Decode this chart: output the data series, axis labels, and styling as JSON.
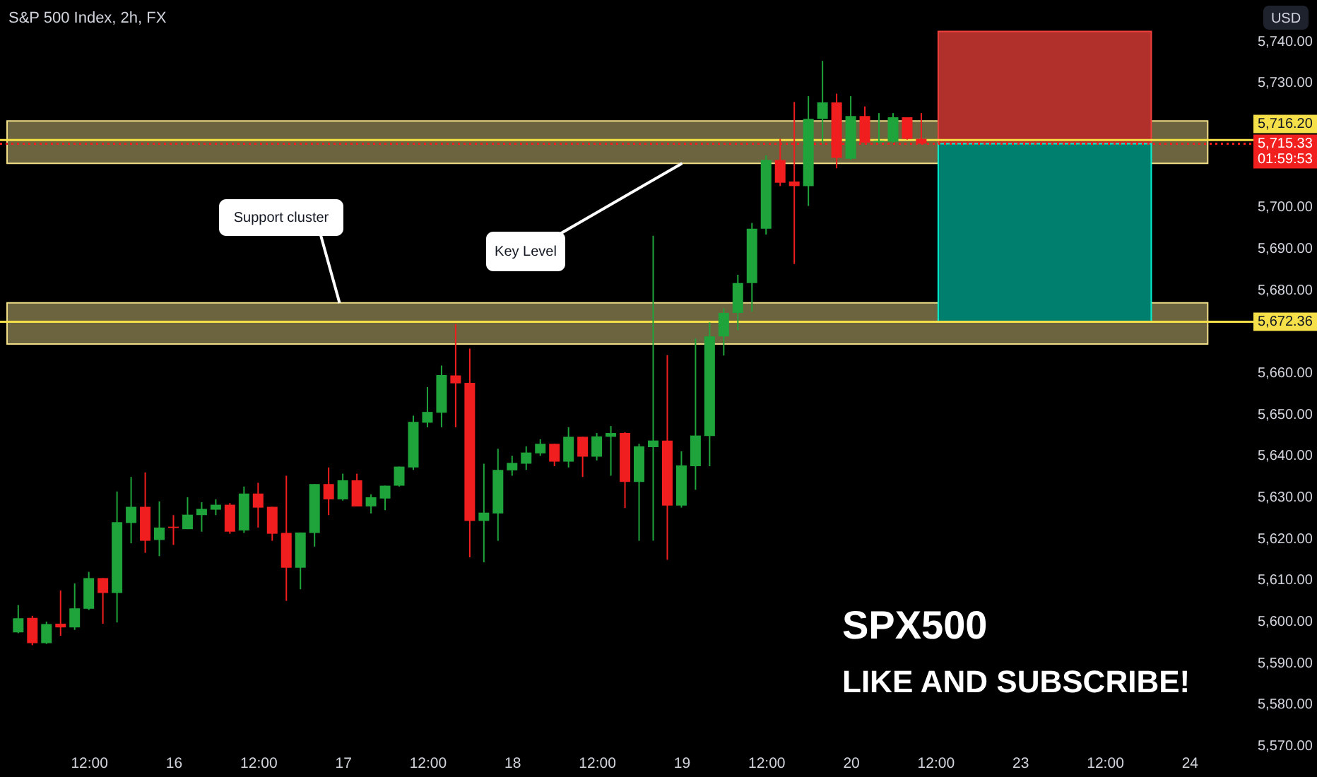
{
  "chart_data": {
    "type": "candlestick",
    "title": "S&P 500 Index, 2h, FX",
    "ylabel": "USD",
    "categories": [
      null,
      null,
      null,
      null,
      null,
      "12:00",
      null,
      null,
      null,
      null,
      null,
      "16",
      null,
      null,
      null,
      null,
      null,
      "12:00",
      null,
      null,
      null,
      null,
      null,
      "17",
      null,
      null,
      null,
      null,
      null,
      "12:00",
      null,
      null,
      null,
      null,
      null,
      "18",
      null,
      null,
      null,
      null,
      null,
      "12:00",
      null,
      null,
      null,
      null,
      null,
      "19",
      null,
      null,
      null,
      null,
      null,
      "12:00",
      null,
      null,
      null,
      null,
      null,
      "20",
      null,
      null,
      null,
      null,
      null,
      "12:00",
      null,
      null,
      null,
      null,
      null,
      "23",
      null,
      null,
      null,
      null,
      null,
      "12:00",
      null,
      null,
      null,
      null,
      null,
      "24",
      null,
      null,
      null
    ],
    "ohlc": [
      [
        5597.4,
        5604.0,
        5597.2,
        5600.8
      ],
      [
        5600.9,
        5601.4,
        5594.3,
        5594.8
      ],
      [
        5594.8,
        5600.0,
        5594.6,
        5599.4
      ],
      [
        5599.5,
        5607.5,
        5596.6,
        5598.6
      ],
      [
        5598.6,
        5609.2,
        5598.0,
        5603.2
      ],
      [
        5603.1,
        5612.0,
        5602.8,
        5610.5
      ],
      [
        5610.5,
        5610.5,
        5599.5,
        5606.9
      ],
      [
        5606.9,
        5631.4,
        5599.8,
        5624.0
      ],
      [
        5623.8,
        5634.9,
        5618.9,
        5627.7
      ],
      [
        5627.7,
        5636.0,
        5616.6,
        5619.5
      ],
      [
        5619.7,
        5629.0,
        5615.8,
        5622.7
      ],
      [
        5622.9,
        5625.7,
        5618.5,
        5622.6
      ],
      [
        5622.3,
        5630.0,
        5622.3,
        5625.8
      ],
      [
        5625.7,
        5628.8,
        5621.7,
        5627.2
      ],
      [
        5627.0,
        5629.5,
        5625.7,
        5628.2
      ],
      [
        5628.2,
        5628.6,
        5621.2,
        5621.7
      ],
      [
        5622.0,
        5632.6,
        5621.4,
        5630.9
      ],
      [
        5630.9,
        5633.5,
        5622.7,
        5627.5
      ],
      [
        5627.7,
        5627.7,
        5619.5,
        5621.2
      ],
      [
        5621.4,
        5635.2,
        5605.0,
        5613.0
      ],
      [
        5613.0,
        5621.5,
        5607.8,
        5621.5
      ],
      [
        5621.4,
        5633.2,
        5618.1,
        5633.2
      ],
      [
        5633.2,
        5637.2,
        5625.7,
        5629.5
      ],
      [
        5629.5,
        5635.7,
        5629.2,
        5634.1
      ],
      [
        5634.1,
        5635.7,
        5627.8,
        5627.8
      ],
      [
        5627.8,
        5630.7,
        5626.1,
        5630.0
      ],
      [
        5629.7,
        5632.8,
        5626.9,
        5632.8
      ],
      [
        5632.8,
        5637.4,
        5632.6,
        5637.4
      ],
      [
        5637.2,
        5649.7,
        5636.6,
        5648.2
      ],
      [
        5648.0,
        5656.6,
        5646.9,
        5650.6
      ],
      [
        5650.4,
        5661.8,
        5646.9,
        5659.5
      ],
      [
        5659.4,
        5671.8,
        5646.9,
        5657.5
      ],
      [
        5657.6,
        5665.9,
        5615.5,
        5624.3
      ],
      [
        5624.3,
        5638.1,
        5614.3,
        5626.3
      ],
      [
        5626.1,
        5641.7,
        5619.5,
        5636.6
      ],
      [
        5636.5,
        5640.0,
        5635.2,
        5638.3
      ],
      [
        5638.1,
        5642.3,
        5636.6,
        5640.8
      ],
      [
        5640.6,
        5644.0,
        5640.0,
        5642.9
      ],
      [
        5642.9,
        5642.9,
        5637.5,
        5638.6
      ],
      [
        5638.6,
        5646.9,
        5637.2,
        5644.6
      ],
      [
        5644.6,
        5644.6,
        5634.9,
        5639.8
      ],
      [
        5639.8,
        5645.5,
        5638.9,
        5644.7
      ],
      [
        5644.6,
        5647.2,
        5635.2,
        5645.5
      ],
      [
        5645.5,
        5645.7,
        5627.4,
        5633.7
      ],
      [
        5633.7,
        5642.9,
        5619.5,
        5642.3
      ],
      [
        5642.1,
        5693.1,
        5619.5,
        5643.7
      ],
      [
        5643.7,
        5664.3,
        5614.9,
        5628.0
      ],
      [
        5628.0,
        5641.1,
        5627.5,
        5637.7
      ],
      [
        5637.5,
        5668.3,
        5631.8,
        5644.9
      ],
      [
        5644.8,
        5672.2,
        5637.5,
        5668.8
      ],
      [
        5668.8,
        5675.6,
        5664.2,
        5674.5
      ],
      [
        5674.5,
        5683.7,
        5670.3,
        5681.7
      ],
      [
        5681.7,
        5696.2,
        5674.8,
        5694.8
      ],
      [
        5694.8,
        5712.5,
        5693.4,
        5711.4
      ],
      [
        5711.4,
        5716.5,
        5705.1,
        5705.9
      ],
      [
        5706.2,
        5725.4,
        5686.3,
        5705.1
      ],
      [
        5705.1,
        5726.8,
        5700.3,
        5721.3
      ],
      [
        5721.3,
        5735.3,
        5715.4,
        5725.3
      ],
      [
        5725.3,
        5727.4,
        5709.4,
        5711.9
      ],
      [
        5711.7,
        5726.8,
        5711.4,
        5722.0
      ],
      [
        5722.0,
        5724.3,
        5715.4,
        5715.6
      ],
      [
        5715.7,
        5722.7,
        5715.5,
        5716.0
      ],
      [
        5715.8,
        5722.7,
        5715.6,
        5721.7
      ],
      [
        5721.7,
        5721.7,
        5716.3,
        5716.5
      ],
      [
        5716.5,
        5722.7,
        5715.3,
        5715.33
      ],
      null,
      null,
      null,
      null,
      null,
      null,
      null,
      null,
      null,
      null,
      null,
      null,
      null,
      null,
      null,
      null,
      null,
      null,
      null,
      null,
      null,
      null
    ],
    "colors": [
      "#1fa33b",
      "#f01e1e",
      "#1fa33b",
      "#f01e1e",
      "#1fa33b",
      "#1fa33b",
      "#f01e1e",
      "#1fa33b",
      "#1fa33b",
      "#f01e1e",
      "#1fa33b",
      "#f01e1e",
      "#1fa33b",
      "#1fa33b",
      "#1fa33b",
      "#f01e1e",
      "#1fa33b",
      "#f01e1e",
      "#f01e1e",
      "#f01e1e",
      "#1fa33b",
      "#1fa33b",
      "#f01e1e",
      "#1fa33b",
      "#f01e1e",
      "#1fa33b",
      "#1fa33b",
      "#1fa33b",
      "#1fa33b",
      "#1fa33b",
      "#1fa33b",
      "#f01e1e",
      "#f01e1e",
      "#1fa33b",
      "#1fa33b",
      "#1fa33b",
      "#1fa33b",
      "#1fa33b",
      "#f01e1e",
      "#1fa33b",
      "#f01e1e",
      "#1fa33b",
      "#1fa33b",
      "#f01e1e",
      "#1fa33b",
      "#1fa33b",
      "#f01e1e",
      "#1fa33b",
      "#1fa33b",
      "#1fa33b",
      "#1fa33b",
      "#1fa33b",
      "#1fa33b",
      "#1fa33b",
      "#f01e1e",
      "#f01e1e",
      "#1fa33b",
      "#1fa33b",
      "#f01e1e",
      "#1fa33b",
      "#f01e1e",
      "#1fa33b",
      "#1fa33b",
      "#f01e1e",
      "#f01e1e",
      null,
      null,
      null,
      null,
      null,
      null,
      null,
      null,
      null,
      null,
      null,
      null,
      null,
      null,
      null,
      null,
      null,
      null,
      null,
      null,
      null,
      null
    ],
    "ylim": [
      5570,
      5750
    ],
    "yticks": [
      {
        "value": 5740,
        "label": "5,740.00"
      },
      {
        "value": 5730,
        "label": "5,730.00"
      },
      {
        "value": 5700,
        "label": "5,700.00"
      },
      {
        "value": 5690,
        "label": "5,690.00"
      },
      {
        "value": 5680,
        "label": "5,680.00"
      },
      {
        "value": 5660,
        "label": "5,660.00"
      },
      {
        "value": 5650,
        "label": "5,650.00"
      },
      {
        "value": 5640,
        "label": "5,640.00"
      },
      {
        "value": 5630,
        "label": "5,630.00"
      },
      {
        "value": 5620,
        "label": "5,620.00"
      },
      {
        "value": 5610,
        "label": "5,610.00"
      },
      {
        "value": 5600,
        "label": "5,600.00"
      },
      {
        "value": 5590,
        "label": "5,590.00"
      },
      {
        "value": 5580,
        "label": "5,580.00"
      },
      {
        "value": 5570,
        "label": "5,570.00"
      }
    ],
    "bands": [
      {
        "axis": "y",
        "from": 5710.6,
        "to": 5720.8,
        "color": "#6c643e"
      },
      {
        "axis": "y",
        "from": 5667.0,
        "to": 5676.9,
        "color": "#6c643e"
      },
      {
        "axis": "y",
        "from": 5715.33,
        "to": 5742.4,
        "color": "#b2302c"
      },
      {
        "axis": "y",
        "from": 5672.36,
        "to": 5715.33,
        "color": "#007e6e"
      }
    ],
    "ref_lines": [
      {
        "axis": "y",
        "value": 5716.2,
        "label": "5,716.20",
        "color": "#f5e04a"
      },
      {
        "axis": "y",
        "value": 5672.36,
        "label": "5,672.36",
        "color": "#f5e04a"
      },
      {
        "axis": "y",
        "value": 5715.33,
        "label": "5,715.33",
        "color": "#f21f1f",
        "line_style": "dotted"
      }
    ],
    "annotations": [
      {
        "text": "Support cluster",
        "x": "17",
        "y": 5676.9
      },
      {
        "text": "Key Level",
        "x": "19",
        "y": 5710.6
      },
      "01:59:53",
      "SPX500",
      "LIKE AND SUBSCRIBE!"
    ]
  }
}
